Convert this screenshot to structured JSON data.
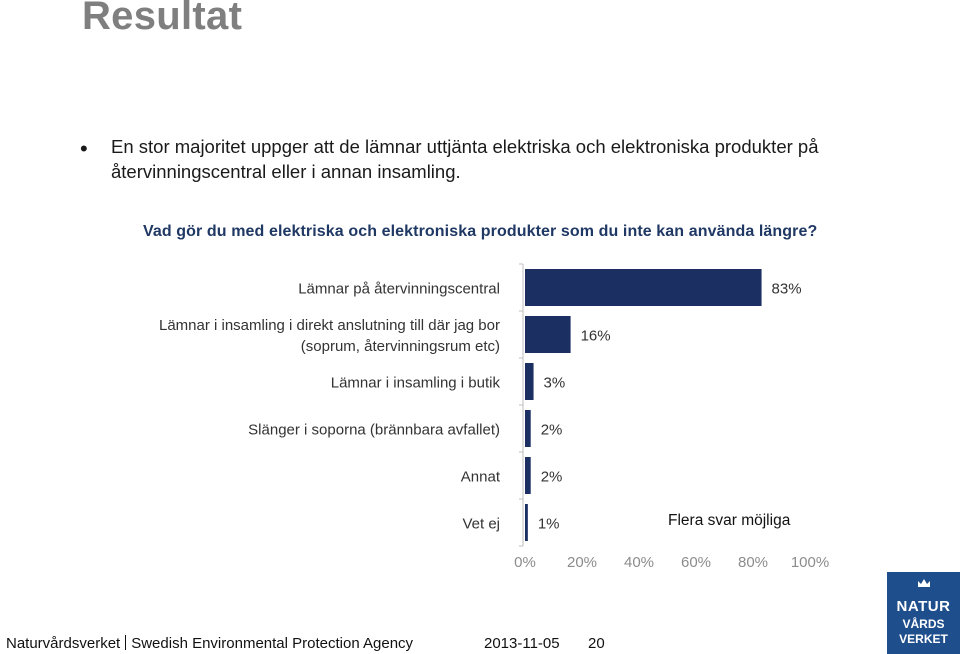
{
  "page": {
    "title": "Resultat",
    "bullet": "En stor majoritet uppger att de lämnar uttjänta elektriska och elektroniska produkter på återvinningscentral eller i annan insamling.",
    "question": "Vad gör du med elektriska och elektroniska produkter som du inte kan använda längre?",
    "note": "Flera svar möjliga"
  },
  "footer": {
    "org": "Naturvårdsverket",
    "org_en": "Swedish Environmental Protection Agency",
    "date": "2013-11-05",
    "page_number": "20"
  },
  "logo": {
    "line1": "NATUR",
    "line2": "VÅRDS",
    "line3": "VERKET"
  },
  "colors": {
    "bar": "#1b2f63",
    "title": "#7f7f7f",
    "question": "#1f3864",
    "axis_text": "#8c8c8c",
    "logo_bg": "#1f4e8c"
  },
  "chart_data": {
    "type": "bar",
    "orientation": "horizontal",
    "categories": [
      [
        "Lämnar på återvinningscentral"
      ],
      [
        "Lämnar i insamling i direkt anslutning till där jag bor",
        "(soprum, återvinningsrum etc)"
      ],
      [
        "Lämnar i insamling i butik"
      ],
      [
        "Slänger i soporna (brännbara avfallet)"
      ],
      [
        "Annat"
      ],
      [
        "Vet ej"
      ]
    ],
    "values": [
      83,
      16,
      3,
      2,
      2,
      1
    ],
    "value_labels": [
      "83%",
      "16%",
      "3%",
      "2%",
      "2%",
      "1%"
    ],
    "xlim": [
      0,
      100
    ],
    "x_ticks": [
      "0%",
      "20%",
      "40%",
      "60%",
      "80%",
      "100%"
    ],
    "grid": false,
    "legend": "none"
  }
}
